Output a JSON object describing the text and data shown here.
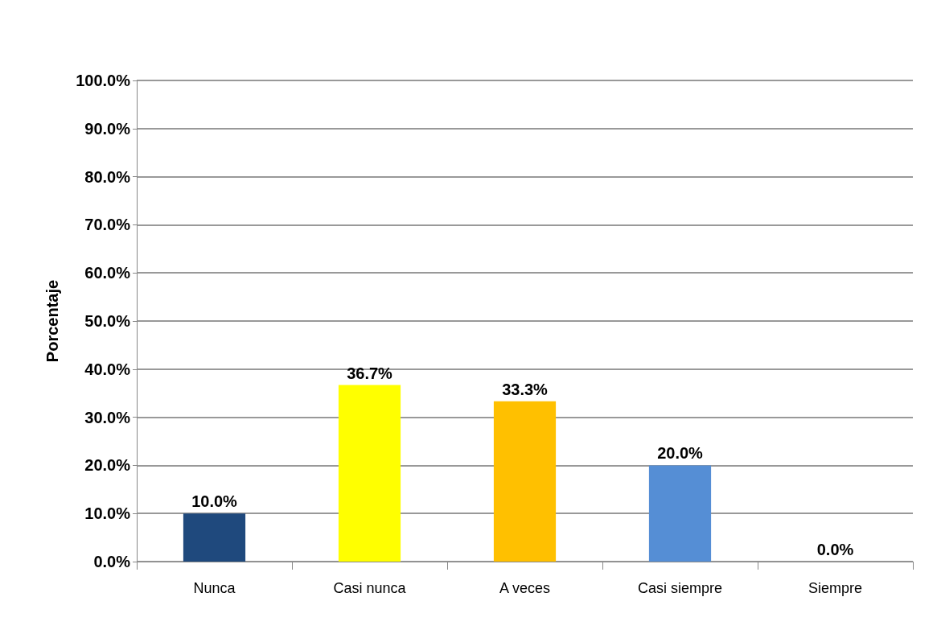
{
  "chart_data": {
    "type": "bar",
    "ylabel": "Porcentaje",
    "categories": [
      "Nunca",
      "Casi nunca",
      "A veces",
      "Casi siempre",
      "Siempre"
    ],
    "values": [
      10.0,
      36.7,
      33.3,
      20.0,
      0.0
    ],
    "colors": [
      "#1f497d",
      "#ffff00",
      "#ffc000",
      "#558ed5",
      "#953735"
    ],
    "value_labels": [
      "10.0%",
      "36.7%",
      "33.3%",
      "20.0%",
      "0.0%"
    ],
    "ylim": [
      0,
      100
    ],
    "yticks": [
      {
        "value": 0,
        "label": "0.0%"
      },
      {
        "value": 10,
        "label": "10.0%"
      },
      {
        "value": 20,
        "label": "20.0%"
      },
      {
        "value": 30,
        "label": "30.0%"
      },
      {
        "value": 40,
        "label": "40.0%"
      },
      {
        "value": 50,
        "label": "50.0%"
      },
      {
        "value": 60,
        "label": "60.0%"
      },
      {
        "value": 70,
        "label": "70.0%"
      },
      {
        "value": 80,
        "label": "80.0%"
      },
      {
        "value": 90,
        "label": "90.0%"
      },
      {
        "value": 100,
        "label": "100.0%"
      }
    ],
    "grid": "y"
  }
}
